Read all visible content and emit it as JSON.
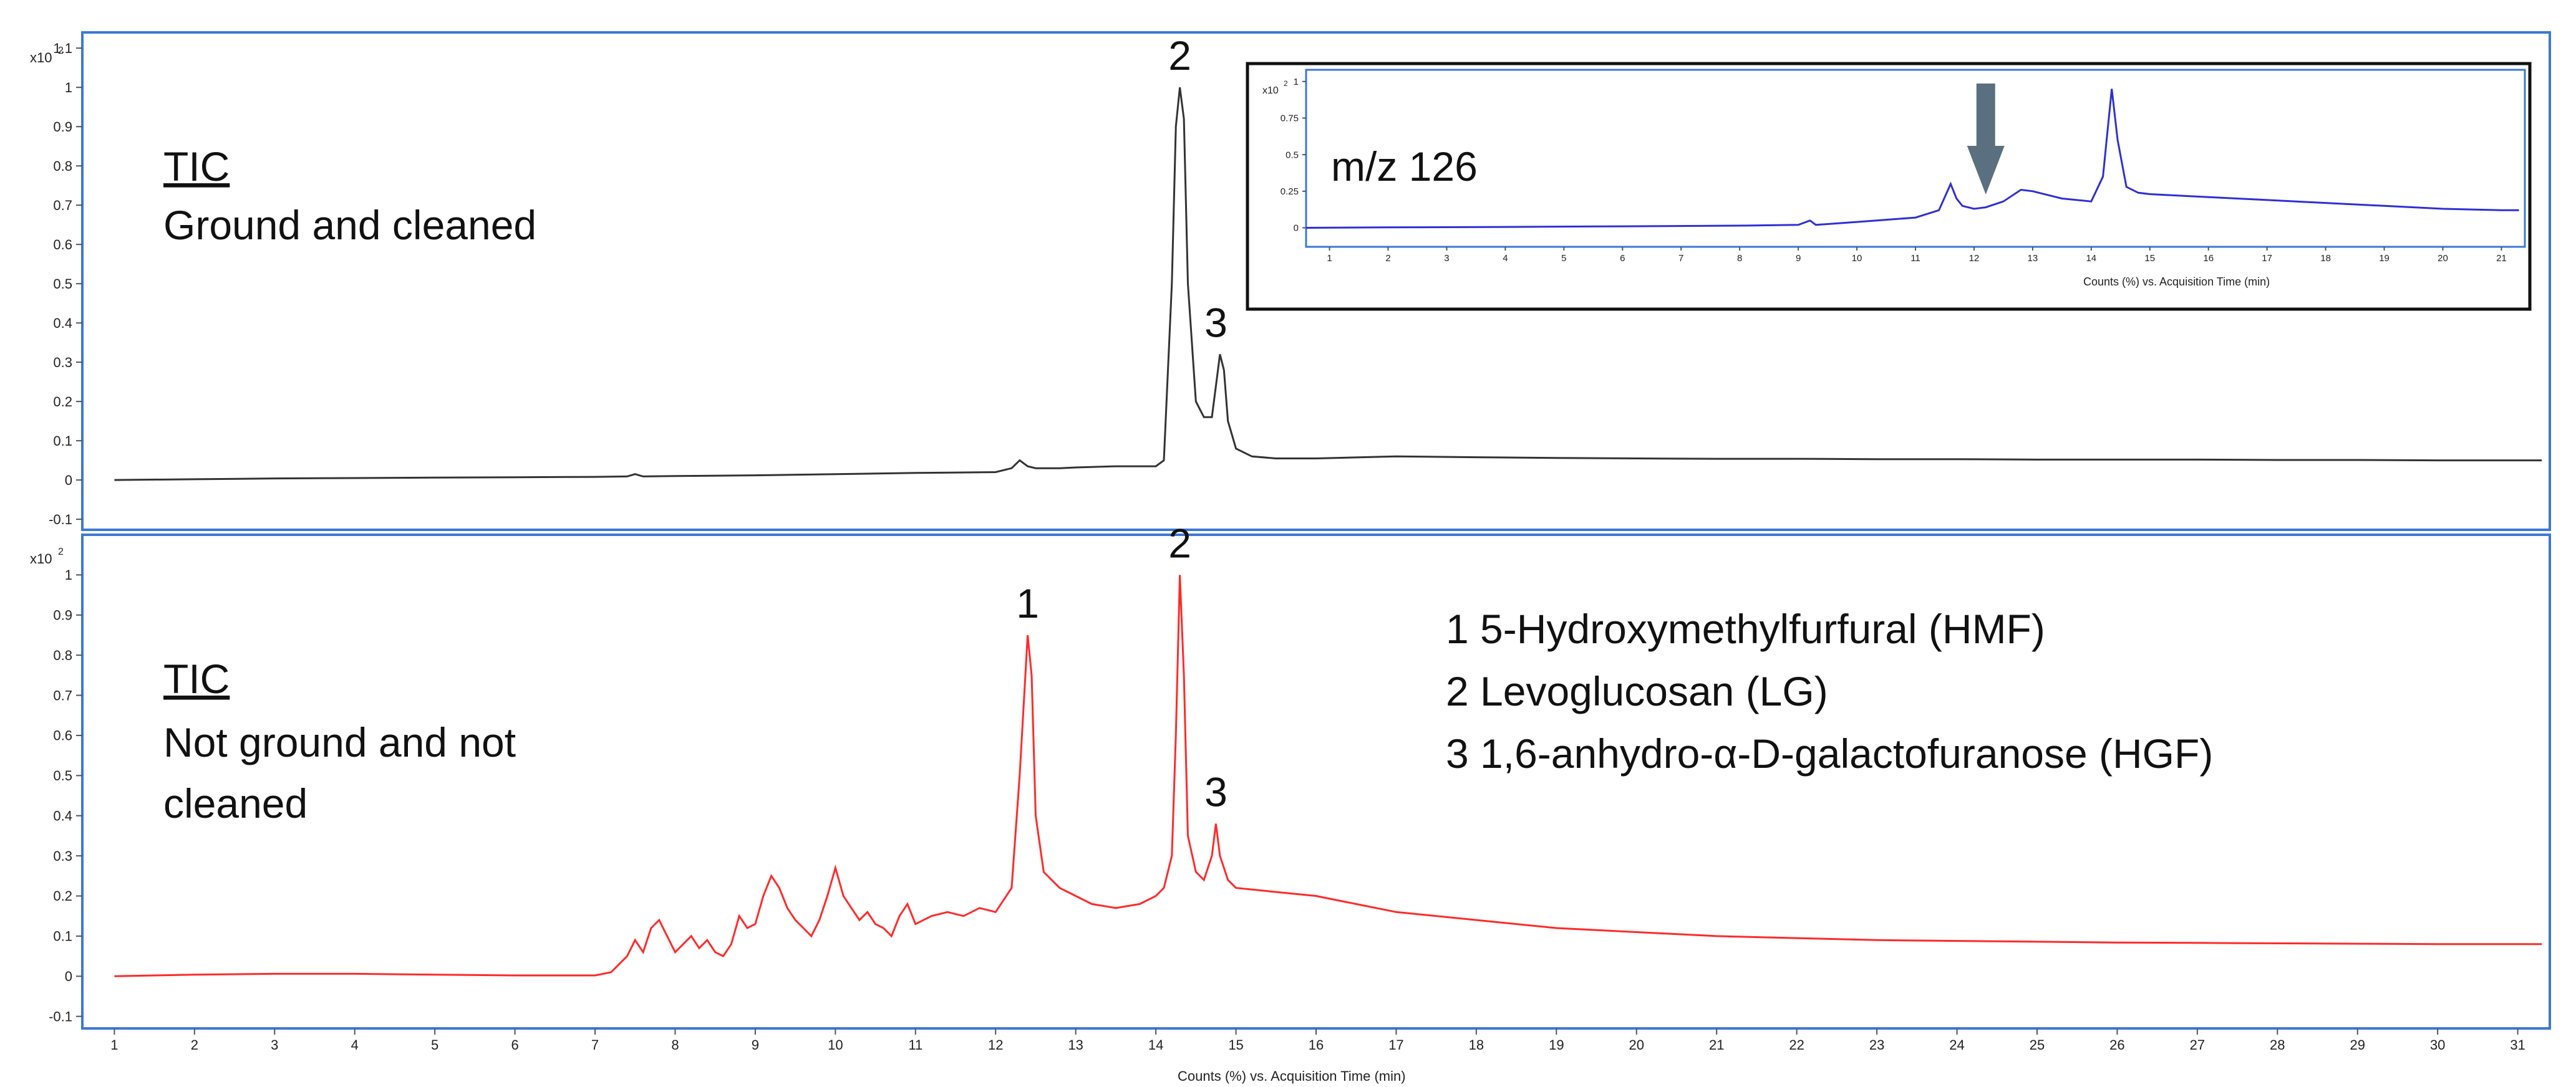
{
  "chart_data": [
    {
      "type": "line",
      "series": [
        {
          "x": [
            1,
            2,
            3,
            4,
            5,
            6,
            7,
            7.4,
            7.5,
            7.6,
            8,
            9,
            10,
            11,
            12,
            12.2,
            12.3,
            12.4,
            12.5,
            12.6,
            12.8,
            13,
            13.5,
            14,
            14.1,
            14.2,
            14.25,
            14.3,
            14.35,
            14.4,
            14.5,
            14.6,
            14.7,
            14.8,
            14.85,
            14.9,
            15,
            15.2,
            15.5,
            16,
            17,
            18,
            19,
            20,
            21,
            22,
            23,
            24,
            25,
            26,
            27,
            28,
            29,
            30,
            31.3
          ],
          "y": [
            0,
            0.002,
            0.004,
            0.005,
            0.006,
            0.007,
            0.008,
            0.009,
            0.015,
            0.009,
            0.01,
            0.012,
            0.015,
            0.018,
            0.02,
            0.03,
            0.05,
            0.035,
            0.03,
            0.03,
            0.03,
            0.032,
            0.035,
            0.035,
            0.05,
            0.5,
            0.9,
            1.0,
            0.92,
            0.5,
            0.2,
            0.16,
            0.16,
            0.32,
            0.28,
            0.15,
            0.08,
            0.06,
            0.055,
            0.055,
            0.06,
            0.058,
            0.056,
            0.055,
            0.054,
            0.054,
            0.053,
            0.053,
            0.052,
            0.052,
            0.052,
            0.051,
            0.051,
            0.05,
            0.05
          ],
          "color": "#333333"
        }
      ],
      "xlim": [
        0.6,
        31.4
      ],
      "ylim": [
        -0.13,
        1.14
      ],
      "y_ticks": [
        "1.1",
        "1",
        "0.9",
        "0.8",
        "0.7",
        "0.6",
        "0.5",
        "0.4",
        "0.3",
        "0.2",
        "0.1",
        "0",
        "-0.1"
      ],
      "y_multiplier": "x10",
      "y_multiplier_exp": "2",
      "labels": [
        "TIC",
        "Ground and cleaned"
      ],
      "peak_labels": [
        {
          "text": "2",
          "x": 14.3,
          "y": 1.0
        },
        {
          "text": "3",
          "x": 14.75,
          "y": 0.32
        }
      ]
    },
    {
      "type": "line",
      "series": [
        {
          "x": [
            1,
            2,
            3,
            4,
            5,
            6,
            7,
            7.2,
            7.4,
            7.5,
            7.6,
            7.7,
            7.8,
            7.9,
            8,
            8.1,
            8.2,
            8.3,
            8.4,
            8.5,
            8.6,
            8.7,
            8.8,
            8.9,
            9,
            9.1,
            9.2,
            9.3,
            9.4,
            9.5,
            9.6,
            9.7,
            9.8,
            9.9,
            10,
            10.1,
            10.2,
            10.3,
            10.4,
            10.5,
            10.6,
            10.7,
            10.8,
            10.9,
            11,
            11.2,
            11.4,
            11.6,
            11.8,
            12,
            12.2,
            12.3,
            12.4,
            12.45,
            12.5,
            12.6,
            12.7,
            12.8,
            13,
            13.2,
            13.5,
            13.8,
            14,
            14.1,
            14.2,
            14.25,
            14.3,
            14.35,
            14.4,
            14.5,
            14.6,
            14.7,
            14.75,
            14.8,
            14.9,
            15,
            15.5,
            16,
            16.5,
            17,
            18,
            19,
            20,
            21,
            22,
            23,
            24,
            25,
            26,
            27,
            28,
            29,
            30,
            31.3
          ],
          "y": [
            0,
            0.004,
            0.006,
            0.006,
            0.004,
            0.002,
            0.002,
            0.01,
            0.05,
            0.09,
            0.06,
            0.12,
            0.14,
            0.1,
            0.06,
            0.08,
            0.1,
            0.07,
            0.09,
            0.06,
            0.05,
            0.08,
            0.15,
            0.12,
            0.13,
            0.2,
            0.25,
            0.22,
            0.17,
            0.14,
            0.12,
            0.1,
            0.14,
            0.2,
            0.27,
            0.2,
            0.17,
            0.14,
            0.16,
            0.13,
            0.12,
            0.1,
            0.15,
            0.18,
            0.13,
            0.15,
            0.16,
            0.15,
            0.17,
            0.16,
            0.22,
            0.5,
            0.85,
            0.75,
            0.4,
            0.26,
            0.24,
            0.22,
            0.2,
            0.18,
            0.17,
            0.18,
            0.2,
            0.22,
            0.3,
            0.6,
            1.0,
            0.75,
            0.35,
            0.26,
            0.24,
            0.3,
            0.38,
            0.3,
            0.24,
            0.22,
            0.21,
            0.2,
            0.18,
            0.16,
            0.14,
            0.12,
            0.11,
            0.1,
            0.095,
            0.09,
            0.088,
            0.086,
            0.084,
            0.083,
            0.082,
            0.081,
            0.08,
            0.08
          ],
          "color": "#ff2a2a"
        }
      ],
      "xlim": [
        0.6,
        31.4
      ],
      "ylim": [
        -0.13,
        1.1
      ],
      "x_ticks": [
        "1",
        "2",
        "3",
        "4",
        "5",
        "6",
        "7",
        "8",
        "9",
        "10",
        "11",
        "12",
        "13",
        "14",
        "15",
        "16",
        "17",
        "18",
        "19",
        "20",
        "21",
        "22",
        "23",
        "24",
        "25",
        "26",
        "27",
        "28",
        "29",
        "30",
        "31"
      ],
      "y_ticks": [
        "1",
        "0.9",
        "0.8",
        "0.7",
        "0.6",
        "0.5",
        "0.4",
        "0.3",
        "0.2",
        "0.1",
        "0",
        "-0.1"
      ],
      "y_multiplier": "x10",
      "y_multiplier_exp": "2",
      "xlabel": "Counts (%) vs. Acquisition Time (min)",
      "labels": [
        "TIC",
        "Not ground and not",
        "cleaned"
      ],
      "peak_labels": [
        {
          "text": "1",
          "x": 12.4,
          "y": 0.85
        },
        {
          "text": "2",
          "x": 14.3,
          "y": 1.0
        },
        {
          "text": "3",
          "x": 14.75,
          "y": 0.38
        }
      ],
      "legend": [
        "1 5-Hydroxymethylfurfural (HMF)",
        "2 Levoglucosan (LG)",
        "3 1,6-anhydro-α-D-galactofuranose (HGF)"
      ]
    },
    {
      "type": "line",
      "series": [
        {
          "x": [
            0.6,
            2,
            4,
            6,
            8,
            9,
            9.2,
            9.3,
            10,
            11,
            11.4,
            11.6,
            11.7,
            11.8,
            12,
            12.2,
            12.5,
            12.8,
            13,
            13.5,
            14,
            14.2,
            14.35,
            14.45,
            14.6,
            14.8,
            15,
            16,
            17,
            18,
            19,
            20,
            21,
            21.3
          ],
          "y": [
            0,
            0.003,
            0.006,
            0.01,
            0.015,
            0.02,
            0.05,
            0.02,
            0.04,
            0.07,
            0.12,
            0.3,
            0.2,
            0.15,
            0.13,
            0.14,
            0.18,
            0.26,
            0.25,
            0.2,
            0.18,
            0.35,
            0.95,
            0.6,
            0.28,
            0.24,
            0.23,
            0.21,
            0.19,
            0.17,
            0.15,
            0.13,
            0.12,
            0.12
          ],
          "color": "#2f2fd6"
        }
      ],
      "xlim": [
        0.6,
        21.4
      ],
      "ylim": [
        -0.13,
        1.08
      ],
      "x_ticks": [
        "1",
        "2",
        "3",
        "4",
        "5",
        "6",
        "7",
        "8",
        "9",
        "10",
        "11",
        "12",
        "13",
        "14",
        "15",
        "16",
        "17",
        "18",
        "19",
        "20",
        "21"
      ],
      "y_ticks": [
        "1",
        "0.75",
        "0.5",
        "0.25",
        "0"
      ],
      "y_multiplier": "x10",
      "y_multiplier_exp": "2",
      "xlabel": "Counts (%) vs. Acquisition Time (min)",
      "labels": [
        "m/z 126"
      ],
      "arrow_x": 12.2
    }
  ],
  "colors": {
    "panel_border": "#3c78d8",
    "arrow": "#5a6f80"
  }
}
